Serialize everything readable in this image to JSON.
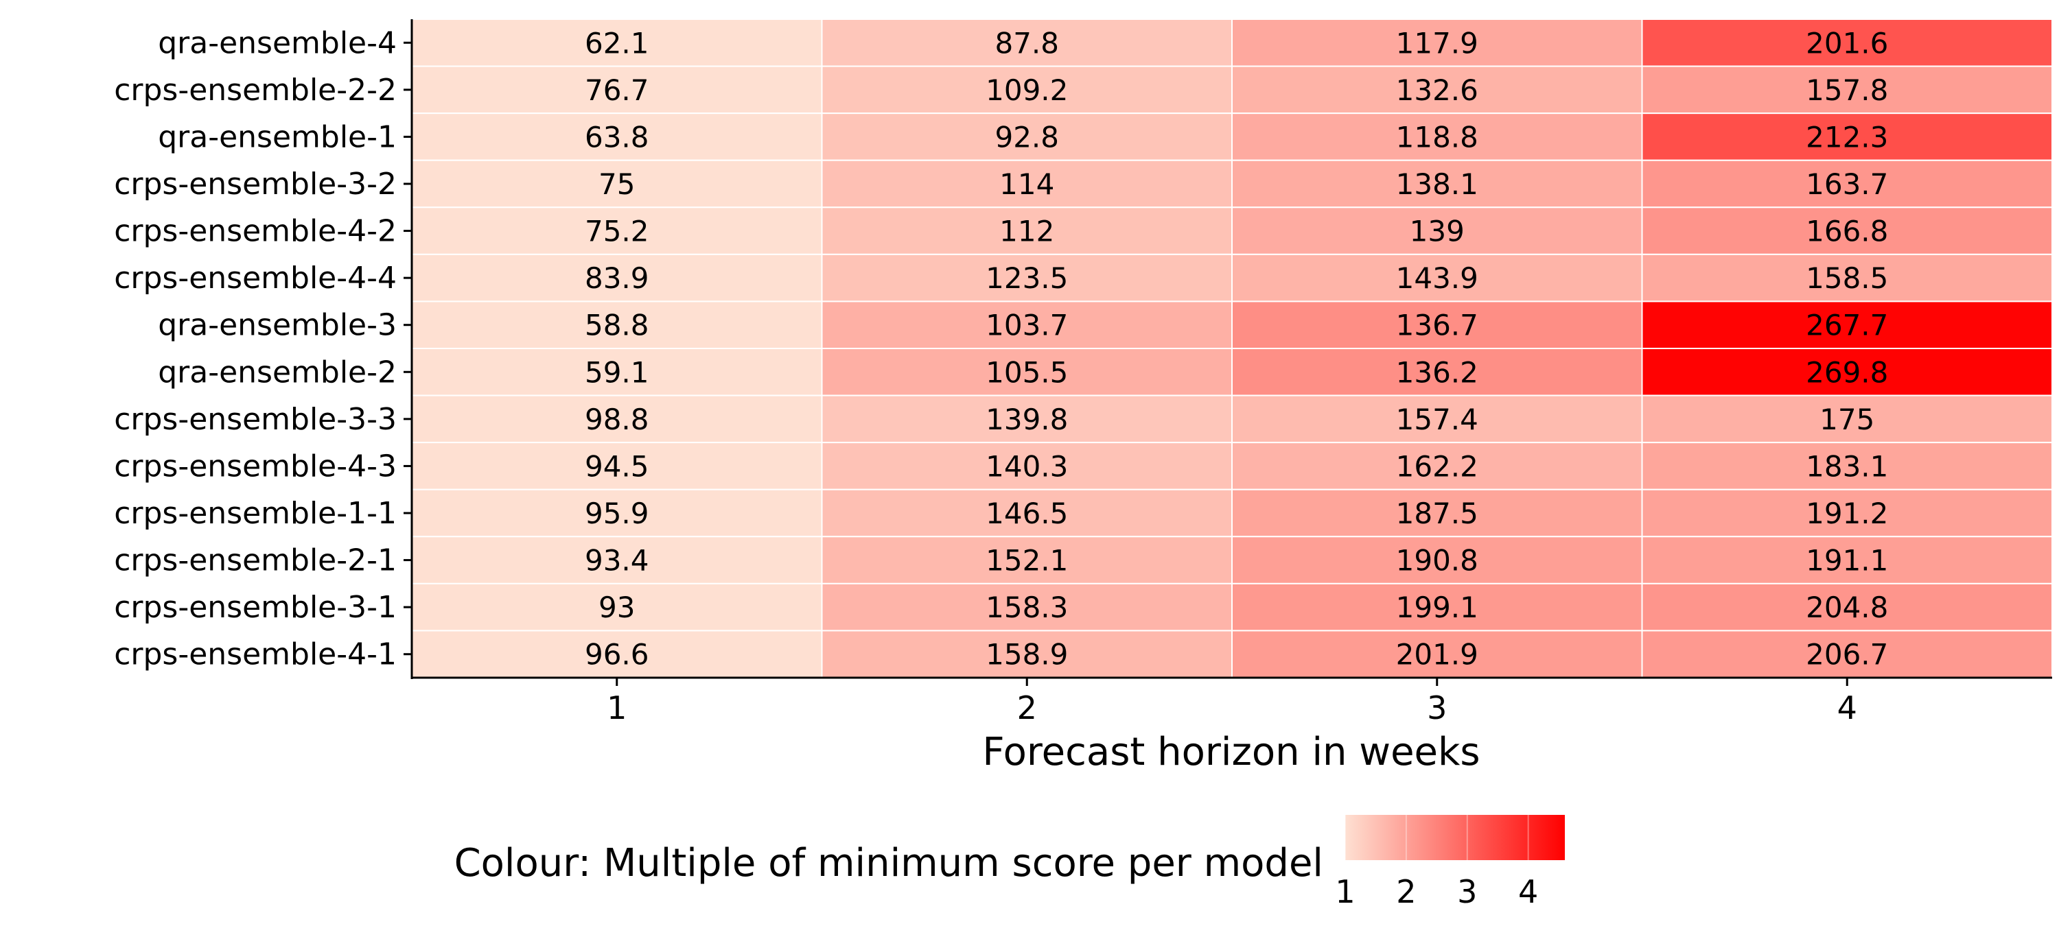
{
  "chart_data": {
    "type": "heatmap",
    "title": "",
    "xlabel": "Forecast horizon in weeks",
    "ylabel": "",
    "x": [
      1,
      2,
      3,
      4
    ],
    "rows": [
      "qra-ensemble-4",
      "crps-ensemble-2-2",
      "qra-ensemble-1",
      "crps-ensemble-3-2",
      "crps-ensemble-4-2",
      "crps-ensemble-4-4",
      "qra-ensemble-3",
      "qra-ensemble-2",
      "crps-ensemble-3-3",
      "crps-ensemble-4-3",
      "crps-ensemble-1-1",
      "crps-ensemble-2-1",
      "crps-ensemble-3-1",
      "crps-ensemble-4-1"
    ],
    "values": [
      [
        62.1,
        87.8,
        117.9,
        201.6
      ],
      [
        76.7,
        109.2,
        132.6,
        157.8
      ],
      [
        63.8,
        92.8,
        118.8,
        212.3
      ],
      [
        75,
        114,
        138.1,
        163.7
      ],
      [
        75.2,
        112,
        139,
        166.8
      ],
      [
        83.9,
        123.5,
        143.9,
        158.5
      ],
      [
        58.8,
        103.7,
        136.7,
        267.7
      ],
      [
        59.1,
        105.5,
        136.2,
        269.8
      ],
      [
        98.8,
        139.8,
        157.4,
        175
      ],
      [
        94.5,
        140.3,
        162.2,
        183.1
      ],
      [
        95.9,
        146.5,
        187.5,
        191.2
      ],
      [
        93.4,
        152.1,
        190.8,
        191.1
      ],
      [
        93,
        158.3,
        199.1,
        204.8
      ],
      [
        96.6,
        158.9,
        201.9,
        206.7
      ]
    ],
    "value_labels": [
      [
        "62.1",
        "87.8",
        "117.9",
        "201.6"
      ],
      [
        "76.7",
        "109.2",
        "132.6",
        "157.8"
      ],
      [
        "63.8",
        "92.8",
        "118.8",
        "212.3"
      ],
      [
        "75",
        "114",
        "138.1",
        "163.7"
      ],
      [
        "75.2",
        "112",
        "139",
        "166.8"
      ],
      [
        "83.9",
        "123.5",
        "143.9",
        "158.5"
      ],
      [
        "58.8",
        "103.7",
        "136.7",
        "267.7"
      ],
      [
        "59.1",
        "105.5",
        "136.2",
        "269.8"
      ],
      [
        "98.8",
        "139.8",
        "157.4",
        "175"
      ],
      [
        "94.5",
        "140.3",
        "162.2",
        "183.1"
      ],
      [
        "95.9",
        "146.5",
        "187.5",
        "191.2"
      ],
      [
        "93.4",
        "152.1",
        "190.8",
        "191.1"
      ],
      [
        "93",
        "158.3",
        "199.1",
        "204.8"
      ],
      [
        "96.6",
        "158.9",
        "201.9",
        "206.7"
      ]
    ],
    "colour_rule": "Multiple of minimum score per model",
    "colour_scale": {
      "title": "Colour: Multiple of minimum score per model",
      "range": [
        1,
        4.6
      ],
      "ticks": [
        1,
        2,
        3,
        4
      ],
      "low_color": "#fee0d2",
      "high_color": "#ff0000"
    },
    "grid": true,
    "legend": "bottom"
  }
}
